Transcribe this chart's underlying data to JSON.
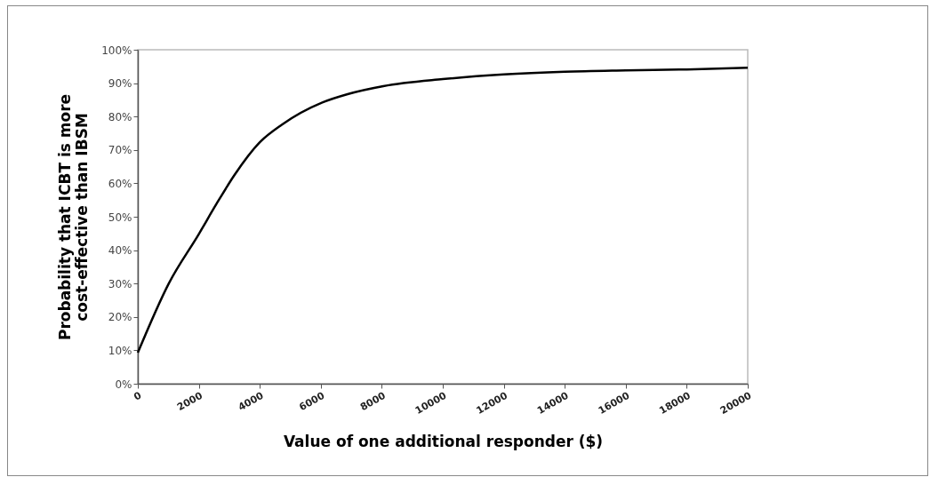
{
  "chart_data": {
    "type": "line",
    "xlabel": "Value of one additional responder ($)",
    "ylabel": "Probability that ICBT is more cost-effective than IBSM",
    "x": [
      0,
      1020,
      2000,
      2590,
      3170,
      4000,
      4730,
      6050,
      6880,
      8050,
      10000,
      12000,
      14000,
      16000,
      18000,
      20000
    ],
    "series": [
      {
        "color": "#000000",
        "values": [
          9.3,
          30.1,
          44.8,
          54,
          62.5,
          72.3,
          77.6,
          84.2,
          86.7,
          89.1,
          91.2,
          92.6,
          93.4,
          93.8,
          94.1,
          94.6
        ]
      }
    ],
    "xlim": [
      0,
      20000
    ],
    "xticks": [
      0,
      2000,
      4000,
      6000,
      8000,
      10000,
      12000,
      14000,
      16000,
      18000,
      20000
    ],
    "ylim": [
      0,
      100
    ],
    "yticks": [
      {
        "value": 0,
        "label": "0%"
      },
      {
        "value": 10,
        "label": "10%"
      },
      {
        "value": 20,
        "label": "20%"
      },
      {
        "value": 30,
        "label": "30%"
      },
      {
        "value": 40,
        "label": "40%"
      },
      {
        "value": 50,
        "label": "50%"
      },
      {
        "value": 60,
        "label": "60%"
      },
      {
        "value": 70,
        "label": "70%"
      },
      {
        "value": 80,
        "label": "80%"
      },
      {
        "value": 90,
        "label": "90%"
      },
      {
        "value": 100,
        "label": "100%"
      }
    ],
    "grid": false,
    "marker": "none",
    "line_style": "solid"
  }
}
